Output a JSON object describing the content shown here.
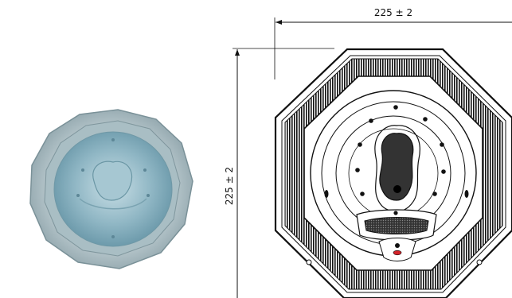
{
  "dimensions": {
    "width_label": "225 ± 2",
    "height_label": "225 ± 2"
  },
  "colors": {
    "line": "#111111",
    "accent_red": "#d2232a",
    "water_light": "#b9d3dc",
    "water_mid": "#8fb6c4",
    "water_dark": "#5f8fa1",
    "shell": "#9db1b8"
  },
  "icons": {
    "photo": "hot-tub-photo-icon",
    "drawing": "hot-tub-top-view-drawing"
  }
}
